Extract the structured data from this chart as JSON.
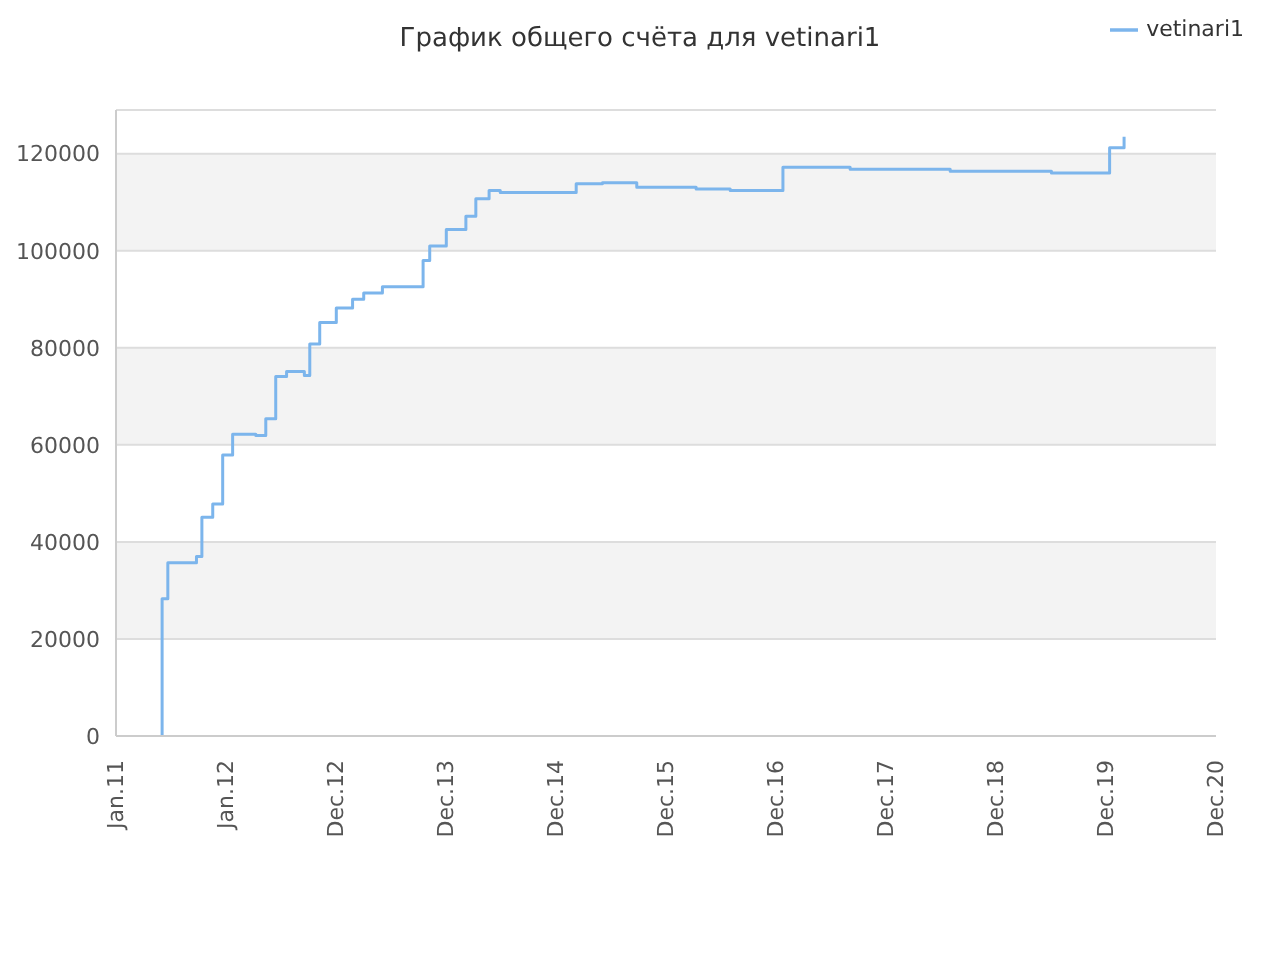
{
  "chart_data": {
    "type": "step",
    "title": "График общего счёта для vetinari1",
    "x": [
      "2011-05-31",
      "2011-06-03",
      "2011-06-22",
      "2011-09-25",
      "2011-10-13",
      "2011-11-18",
      "2011-12-21",
      "2012-01-23",
      "2012-04-09",
      "2012-05-12",
      "2012-06-14",
      "2012-07-20",
      "2012-09-17",
      "2012-10-05",
      "2012-11-07",
      "2013-01-01",
      "2013-02-24",
      "2013-04-02",
      "2013-06-03",
      "2013-10-16",
      "2013-11-07",
      "2014-01-01",
      "2014-03-07",
      "2014-04-09",
      "2014-05-23",
      "2014-06-29",
      "2015-03-08",
      "2015-06-03",
      "2015-09-25",
      "2016-04-09",
      "2016-07-31",
      "2017-01-22",
      "2017-09-02",
      "2018-07-31",
      "2019-07-02",
      "2020-01-11",
      "2020-02-28"
    ],
    "series": [
      {
        "name": "vetinari1",
        "color": "#7cb5ec",
        "values": [
          0,
          28300,
          35700,
          37000,
          45100,
          47800,
          57900,
          62200,
          61900,
          65400,
          74100,
          75100,
          74300,
          80800,
          85200,
          88200,
          90000,
          91300,
          92600,
          98000,
          101000,
          104400,
          107100,
          110700,
          112400,
          112000,
          113800,
          114000,
          113100,
          112700,
          112400,
          117200,
          116800,
          116400,
          116000,
          121200,
          123500
        ]
      }
    ],
    "xlim": [
      "2011-01-01",
      "2020-12-29"
    ],
    "xticks": [
      {
        "value": "2011-01-01",
        "label": "Jan.11"
      },
      {
        "value": "2012-01-01",
        "label": "Jan.12"
      },
      {
        "value": "2012-12-31",
        "label": "Dec.12"
      },
      {
        "value": "2013-12-31",
        "label": "Dec.13"
      },
      {
        "value": "2014-12-31",
        "label": "Dec.14"
      },
      {
        "value": "2015-12-31",
        "label": "Dec.15"
      },
      {
        "value": "2016-12-30",
        "label": "Dec.16"
      },
      {
        "value": "2017-12-30",
        "label": "Dec.17"
      },
      {
        "value": "2018-12-30",
        "label": "Dec.18"
      },
      {
        "value": "2019-12-30",
        "label": "Dec.19"
      },
      {
        "value": "2020-12-29",
        "label": "Dec.20"
      }
    ],
    "ylim": [
      0,
      129000
    ],
    "yticks": [
      0,
      20000,
      40000,
      60000,
      80000,
      100000,
      120000
    ],
    "grid": "y",
    "legend": "top right",
    "marker": "none",
    "line_style": "solid"
  }
}
